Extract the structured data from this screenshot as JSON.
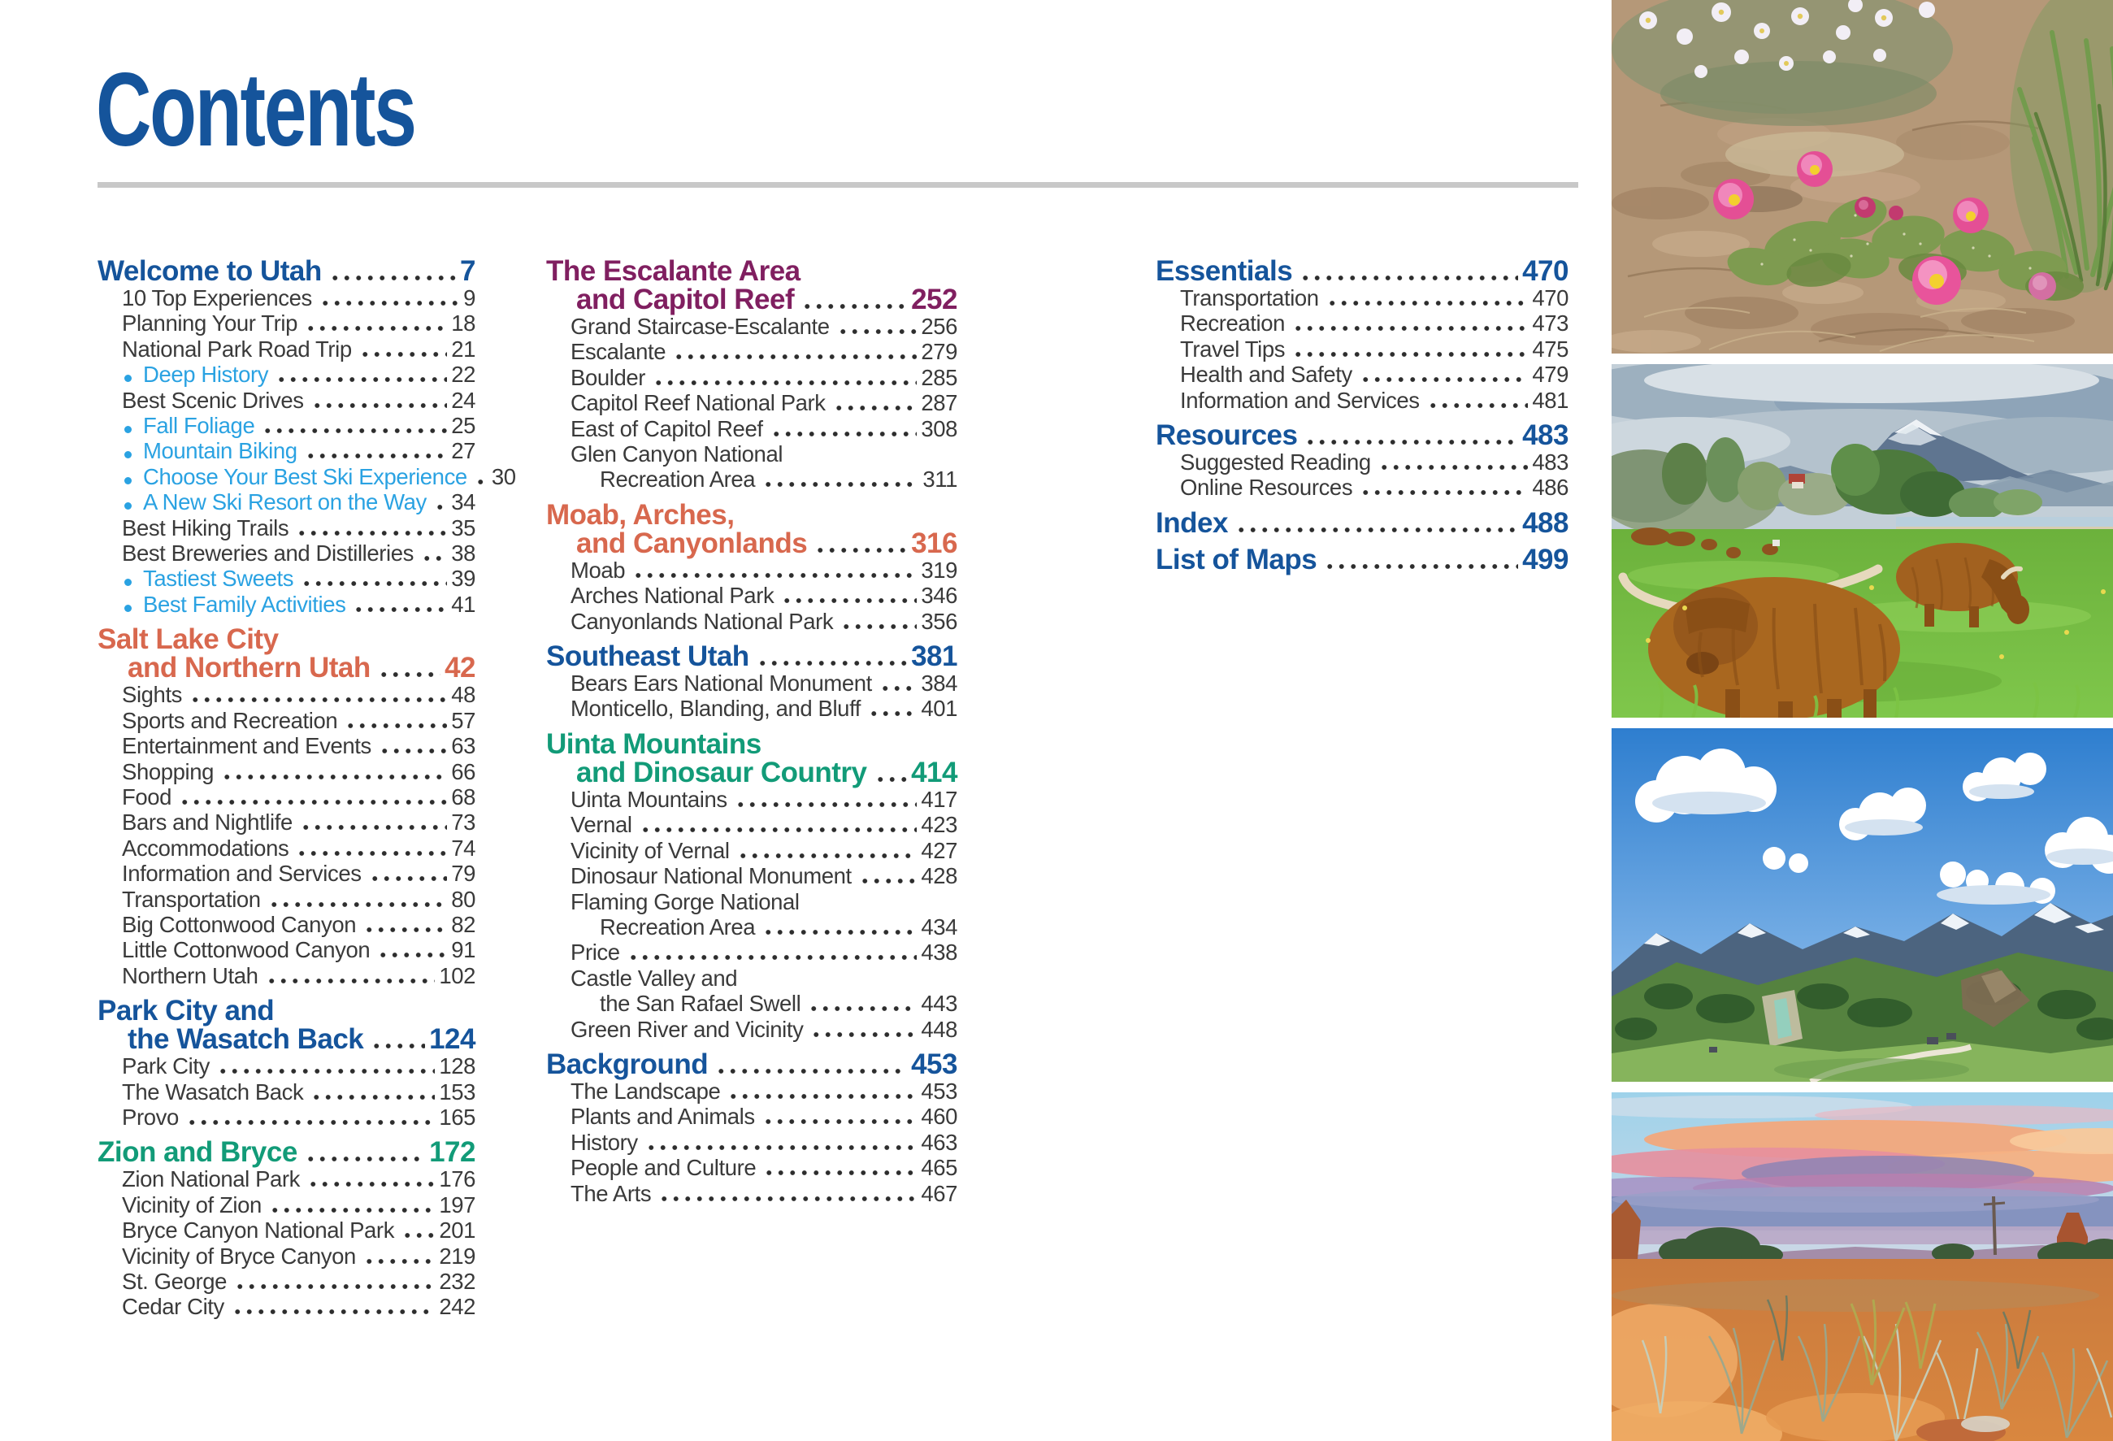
{
  "page": {
    "title": "Contents"
  },
  "colors": {
    "blue": "#15549B",
    "orange": "#D8684E",
    "green": "#129B78",
    "purple": "#801F60",
    "highlight": "#2AA2E2",
    "text": "#3A3A3A",
    "rule": "#C8C8C8"
  },
  "toc": {
    "columns": [
      {
        "sections": [
          {
            "id": "welcome-to-utah",
            "color": "blue",
            "title_lines": [
              "Welcome to Utah"
            ],
            "page": "7",
            "items": [
              {
                "label": "10 Top Experiences",
                "page": "9"
              },
              {
                "label": "Planning Your Trip",
                "page": "18"
              },
              {
                "label": "National Park Road Trip",
                "page": "21"
              },
              {
                "label": "Deep History",
                "page": "22",
                "bullet": true
              },
              {
                "label": "Best Scenic Drives",
                "page": "24"
              },
              {
                "label": "Fall Foliage",
                "page": "25",
                "bullet": true
              },
              {
                "label": "Mountain Biking",
                "page": "27",
                "bullet": true
              },
              {
                "label": "Choose Your Best Ski Experience",
                "page": "30",
                "bullet": true
              },
              {
                "label": "A New Ski Resort on the Way",
                "page": "34",
                "bullet": true
              },
              {
                "label": "Best Hiking Trails",
                "page": "35"
              },
              {
                "label": "Best Breweries and Distilleries",
                "page": "38"
              },
              {
                "label": "Tastiest Sweets",
                "page": "39",
                "bullet": true
              },
              {
                "label": "Best Family Activities",
                "page": "41",
                "bullet": true
              }
            ]
          },
          {
            "id": "salt-lake-city",
            "color": "orange",
            "title_lines": [
              "Salt Lake City",
              "and Northern Utah"
            ],
            "page": "42",
            "items": [
              {
                "label": "Sights",
                "page": "48"
              },
              {
                "label": "Sports and Recreation",
                "page": "57"
              },
              {
                "label": "Entertainment and Events",
                "page": "63"
              },
              {
                "label": "Shopping",
                "page": "66"
              },
              {
                "label": "Food",
                "page": "68"
              },
              {
                "label": "Bars and Nightlife",
                "page": "73"
              },
              {
                "label": "Accommodations",
                "page": "74"
              },
              {
                "label": "Information and Services",
                "page": "79"
              },
              {
                "label": "Transportation",
                "page": "80"
              },
              {
                "label": "Big Cottonwood Canyon",
                "page": "82"
              },
              {
                "label": "Little Cottonwood Canyon",
                "page": "91"
              },
              {
                "label": "Northern Utah",
                "page": "102"
              }
            ]
          },
          {
            "id": "park-city",
            "color": "blue",
            "title_lines": [
              "Park City and",
              "the Wasatch Back"
            ],
            "page": "124",
            "items": [
              {
                "label": "Park City",
                "page": "128"
              },
              {
                "label": "The Wasatch Back",
                "page": "153"
              },
              {
                "label": "Provo",
                "page": "165"
              }
            ]
          },
          {
            "id": "zion-and-bryce",
            "color": "green",
            "title_lines": [
              "Zion and Bryce"
            ],
            "page": "172",
            "items": [
              {
                "label": "Zion National Park",
                "page": "176"
              },
              {
                "label": "Vicinity of Zion",
                "page": "197"
              },
              {
                "label": "Bryce Canyon National Park",
                "page": "201"
              },
              {
                "label": "Vicinity of Bryce Canyon",
                "page": "219"
              },
              {
                "label": "St. George",
                "page": "232"
              },
              {
                "label": "Cedar City",
                "page": "242"
              }
            ]
          }
        ]
      },
      {
        "sections": [
          {
            "id": "escalante-capitol-reef",
            "color": "purple",
            "title_lines": [
              "The Escalante Area",
              "and Capitol Reef"
            ],
            "page": "252",
            "items": [
              {
                "label": "Grand Staircase-Escalante",
                "page": "256"
              },
              {
                "label": "Escalante",
                "page": "279"
              },
              {
                "label": "Boulder",
                "page": "285"
              },
              {
                "label": "Capitol Reef National Park",
                "page": "287"
              },
              {
                "label": "East of Capitol Reef",
                "page": "308"
              },
              {
                "pre": "Glen Canyon National",
                "label": "Recreation Area",
                "page": "311"
              }
            ]
          },
          {
            "id": "moab-arches-canyonlands",
            "color": "orange",
            "title_lines": [
              "Moab, Arches,",
              "and Canyonlands"
            ],
            "page": "316",
            "items": [
              {
                "label": "Moab",
                "page": "319"
              },
              {
                "label": "Arches National Park",
                "page": "346"
              },
              {
                "label": "Canyonlands National Park",
                "page": "356"
              }
            ]
          },
          {
            "id": "southeast-utah",
            "color": "blue",
            "title_lines": [
              "Southeast Utah"
            ],
            "page": "381",
            "items": [
              {
                "label": "Bears Ears National Monument",
                "page": "384"
              },
              {
                "label": "Monticello, Blanding, and Bluff",
                "page": "401"
              }
            ]
          },
          {
            "id": "uinta-dinosaur-country",
            "color": "green",
            "title_lines": [
              "Uinta Mountains",
              "and Dinosaur Country"
            ],
            "page": "414",
            "items": [
              {
                "label": "Uinta Mountains",
                "page": "417"
              },
              {
                "label": "Vernal",
                "page": "423"
              },
              {
                "label": "Vicinity of Vernal",
                "page": "427"
              },
              {
                "label": "Dinosaur National Monument",
                "page": "428"
              },
              {
                "pre": "Flaming Gorge National",
                "label": "Recreation Area",
                "page": "434"
              },
              {
                "label": "Price",
                "page": "438"
              },
              {
                "pre": "Castle Valley and",
                "label": "the San Rafael Swell",
                "page": "443"
              },
              {
                "label": "Green River and Vicinity",
                "page": "448"
              }
            ]
          },
          {
            "id": "background",
            "color": "blue",
            "title_lines": [
              "Background"
            ],
            "page": "453",
            "items": [
              {
                "label": "The Landscape",
                "page": "453"
              },
              {
                "label": "Plants and Animals",
                "page": "460"
              },
              {
                "label": "History",
                "page": "463"
              },
              {
                "label": "People and Culture",
                "page": "465"
              },
              {
                "label": "The Arts",
                "page": "467"
              }
            ]
          }
        ]
      },
      {
        "sections": [
          {
            "id": "essentials",
            "color": "blue",
            "title_lines": [
              "Essentials"
            ],
            "page": "470",
            "items": [
              {
                "label": "Transportation",
                "page": "470"
              },
              {
                "label": "Recreation",
                "page": "473"
              },
              {
                "label": "Travel Tips",
                "page": "475"
              },
              {
                "label": "Health and Safety",
                "page": "479"
              },
              {
                "label": "Information and Services",
                "page": "481"
              }
            ]
          },
          {
            "id": "resources",
            "color": "blue",
            "title_lines": [
              "Resources"
            ],
            "page": "483",
            "items": [
              {
                "label": "Suggested Reading",
                "page": "483"
              },
              {
                "label": "Online Resources",
                "page": "486"
              }
            ]
          },
          {
            "id": "index",
            "color": "blue",
            "title_lines": [
              "Index"
            ],
            "page": "488",
            "items": []
          },
          {
            "id": "list-of-maps",
            "color": "blue",
            "title_lines": [
              "List of Maps"
            ],
            "page": "499",
            "items": []
          }
        ]
      }
    ]
  },
  "photos": [
    {
      "name": "cactus-blossoms"
    },
    {
      "name": "highland-cattle"
    },
    {
      "name": "mountain-valley"
    },
    {
      "name": "desert-sunset"
    }
  ]
}
